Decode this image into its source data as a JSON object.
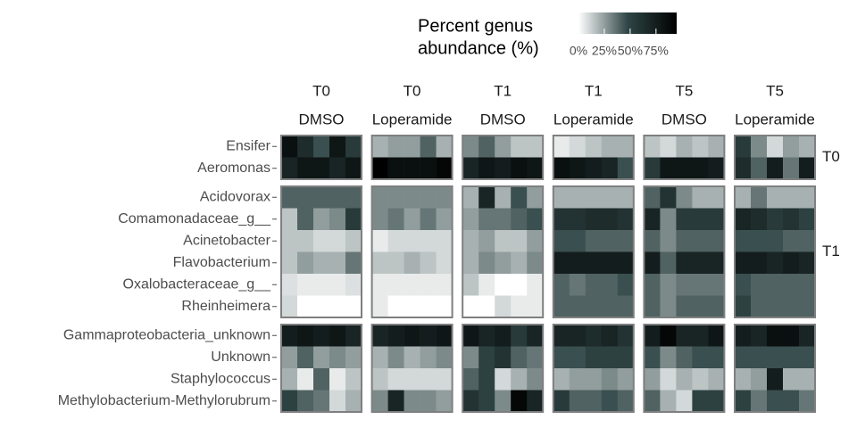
{
  "chart_data": {
    "type": "heatmap",
    "legend_title": [
      "Percent genus",
      "abundance (%)"
    ],
    "clim": [
      0,
      95
    ],
    "colors": [
      "#ffffff",
      "#2f4545",
      "#000000"
    ],
    "cticks": [
      {
        "value": 0,
        "label": "0%"
      },
      {
        "value": 25,
        "label": "25%"
      },
      {
        "value": 50,
        "label": "50%"
      },
      {
        "value": 75,
        "label": "75%"
      }
    ],
    "row_groups": [
      {
        "label": "T0",
        "rows": [
          "Ensifer",
          "Aeromonas"
        ]
      },
      {
        "label": "T1",
        "rows": [
          "Acidovorax",
          "Comamonadaceae_g__",
          "Acinetobacter",
          "Flavobacterium",
          "Oxalobacteraceae_g__",
          "Rheinheimera"
        ]
      },
      {
        "label": null,
        "rows": [
          "Gammaproteobacteria_unknown",
          "Unknown",
          "Staphylococcus",
          "Methylobacterium-Methylorubrum"
        ]
      }
    ],
    "panels": [
      {
        "time": "T0",
        "treatment": "DMSO",
        "values": [
          [
            85,
            65,
            45,
            80,
            55
          ],
          [
            70,
            80,
            80,
            70,
            80
          ],
          [
            40,
            40,
            40,
            40,
            40
          ],
          [
            15,
            40,
            25,
            30,
            55
          ],
          [
            15,
            15,
            10,
            10,
            15
          ],
          [
            15,
            25,
            20,
            20,
            35
          ],
          [
            8,
            5,
            5,
            5,
            8
          ],
          [
            10,
            0,
            0,
            0,
            0
          ],
          [
            75,
            80,
            75,
            80,
            70
          ],
          [
            25,
            40,
            25,
            30,
            25
          ],
          [
            20,
            5,
            40,
            5,
            15
          ],
          [
            50,
            40,
            35,
            10,
            20
          ]
        ]
      },
      {
        "time": "T0",
        "treatment": "Loperamide",
        "values": [
          [
            20,
            25,
            25,
            40,
            20
          ],
          [
            95,
            85,
            85,
            85,
            90
          ],
          [
            30,
            30,
            30,
            30,
            30
          ],
          [
            30,
            35,
            25,
            35,
            25
          ],
          [
            5,
            10,
            10,
            10,
            10
          ],
          [
            15,
            15,
            20,
            15,
            10
          ],
          [
            5,
            5,
            5,
            5,
            5
          ],
          [
            5,
            0,
            0,
            0,
            0
          ],
          [
            70,
            75,
            80,
            75,
            80
          ],
          [
            20,
            30,
            20,
            25,
            30
          ],
          [
            15,
            10,
            10,
            10,
            10
          ],
          [
            30,
            70,
            30,
            30,
            25
          ]
        ]
      },
      {
        "time": "T1",
        "treatment": "DMSO",
        "values": [
          [
            30,
            40,
            25,
            15,
            15
          ],
          [
            70,
            80,
            75,
            85,
            80
          ],
          [
            20,
            70,
            20,
            45,
            25
          ],
          [
            25,
            35,
            35,
            40,
            45
          ],
          [
            20,
            25,
            15,
            15,
            25
          ],
          [
            20,
            30,
            25,
            20,
            30
          ],
          [
            15,
            5,
            0,
            0,
            5
          ],
          [
            0,
            0,
            10,
            5,
            5
          ],
          [
            80,
            70,
            75,
            55,
            70
          ],
          [
            30,
            50,
            60,
            40,
            35
          ],
          [
            40,
            50,
            10,
            20,
            30
          ],
          [
            60,
            50,
            30,
            90,
            70
          ]
        ]
      },
      {
        "time": "T1",
        "treatment": "Loperamide",
        "values": [
          [
            5,
            10,
            15,
            20,
            20
          ],
          [
            85,
            80,
            75,
            70,
            45
          ],
          [
            20,
            20,
            20,
            20,
            20
          ],
          [
            60,
            60,
            65,
            65,
            60
          ],
          [
            45,
            45,
            40,
            40,
            40
          ],
          [
            75,
            75,
            75,
            75,
            75
          ],
          [
            40,
            35,
            40,
            40,
            45
          ],
          [
            40,
            40,
            40,
            40,
            40
          ],
          [
            70,
            70,
            65,
            70,
            60
          ],
          [
            45,
            45,
            50,
            50,
            50
          ],
          [
            20,
            25,
            25,
            30,
            25
          ],
          [
            55,
            40,
            40,
            45,
            40
          ]
        ]
      },
      {
        "time": "T5",
        "treatment": "DMSO",
        "values": [
          [
            15,
            10,
            20,
            15,
            20
          ],
          [
            55,
            80,
            80,
            80,
            75
          ],
          [
            40,
            60,
            30,
            20,
            20
          ],
          [
            70,
            30,
            55,
            55,
            55
          ],
          [
            40,
            30,
            40,
            40,
            40
          ],
          [
            75,
            40,
            70,
            70,
            70
          ],
          [
            40,
            30,
            35,
            35,
            35
          ],
          [
            40,
            30,
            40,
            40,
            40
          ],
          [
            75,
            90,
            70,
            70,
            80
          ],
          [
            45,
            30,
            40,
            45,
            45
          ],
          [
            25,
            10,
            20,
            15,
            20
          ],
          [
            40,
            20,
            10,
            50,
            50
          ]
        ]
      },
      {
        "time": "T5",
        "treatment": "Loperamide",
        "values": [
          [
            55,
            30,
            10,
            25,
            20
          ],
          [
            65,
            40,
            75,
            35,
            75
          ],
          [
            20,
            35,
            20,
            20,
            20
          ],
          [
            70,
            65,
            55,
            60,
            50
          ],
          [
            45,
            45,
            45,
            40,
            40
          ],
          [
            75,
            75,
            70,
            75,
            70
          ],
          [
            45,
            40,
            40,
            40,
            40
          ],
          [
            50,
            40,
            40,
            40,
            40
          ],
          [
            75,
            70,
            85,
            85,
            70
          ],
          [
            45,
            45,
            45,
            45,
            45
          ],
          [
            20,
            25,
            75,
            20,
            20
          ],
          [
            50,
            35,
            45,
            45,
            35
          ]
        ]
      }
    ]
  }
}
